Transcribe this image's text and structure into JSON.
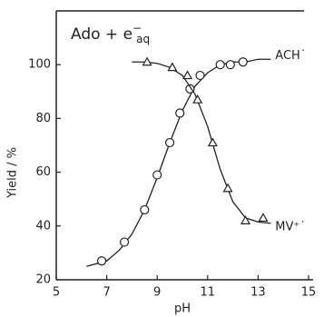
{
  "chart_data": {
    "type": "scatter",
    "title": "Ado + e",
    "title_sup": "−",
    "title_sub": "aq",
    "x_label": "pH",
    "y_label": "Yield / %",
    "xlim": [
      5,
      15
    ],
    "xticks": [
      5,
      7,
      9,
      11,
      13,
      15
    ],
    "ylim": [
      20,
      120
    ],
    "yticks": [
      20,
      40,
      60,
      80,
      100
    ],
    "series": [
      {
        "name": "ACH˙",
        "marker": "circle",
        "color": "#222",
        "x": [
          6.8,
          7.7,
          8.5,
          9.0,
          9.5,
          9.9,
          10.3,
          10.7,
          11.5,
          11.9,
          12.4
        ],
        "values": [
          27,
          34,
          46,
          59,
          71,
          82,
          91,
          96,
          100,
          100,
          101
        ],
        "fit_x": [
          6.2,
          7,
          7.5,
          8,
          8.5,
          9,
          9.5,
          10,
          10.5,
          11,
          11.5,
          12,
          12.5,
          13,
          13.5
        ],
        "fit_values": [
          25,
          27,
          31,
          37,
          46,
          58,
          71,
          83,
          92,
          97,
          100,
          101,
          101,
          102,
          102
        ]
      },
      {
        "name": "MV⁺˙",
        "marker": "triangle",
        "color": "#222",
        "x": [
          8.6,
          9.6,
          10.2,
          10.6,
          11.2,
          11.8,
          12.5,
          13.2
        ],
        "values": [
          101,
          99,
          96,
          87,
          71,
          54,
          42,
          43
        ],
        "fit_x": [
          8,
          8.5,
          9,
          9.5,
          10,
          10.5,
          11,
          11.5,
          12,
          12.5,
          13,
          13.5
        ],
        "fit_values": [
          101,
          101,
          100.5,
          99,
          96,
          89,
          77,
          61,
          49,
          43,
          41.5,
          41
        ]
      }
    ]
  }
}
